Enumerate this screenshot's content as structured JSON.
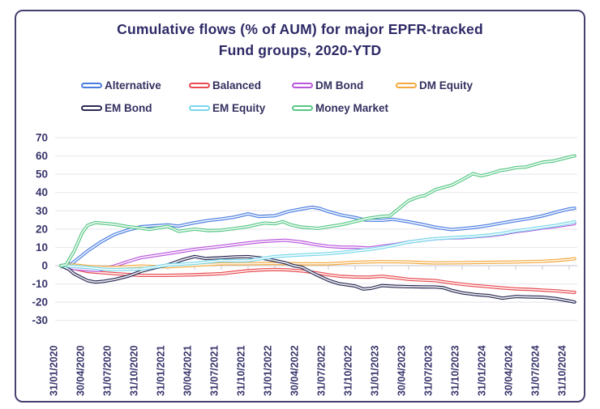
{
  "title": {
    "line1": "Cumulative flows (% of AUM) for major EPFR-tracked",
    "line2": "Fund groups, 2020-YTD"
  },
  "style": {
    "frame_color": "#45416f",
    "grid_color": "#eaeaf0",
    "axis_color": "#cfcfda",
    "tick_color": "#c6c6d0",
    "text_color": "#38356b",
    "title_color": "#2d2a66",
    "background": "#ffffff"
  },
  "chart_data": {
    "type": "line",
    "title": "Cumulative flows (% of AUM) for major EPFR-tracked Fund groups, 2020-YTD",
    "legend_position": "top",
    "grid": true,
    "x_axis": {
      "note": "series points use fractional tick index as x",
      "labels": [
        "31/01/2020",
        "30/04/2020",
        "31/07/2020",
        "31/10/2020",
        "31/01/2021",
        "30/04/2021",
        "31/07/2021",
        "31/10/2021",
        "31/01/2022",
        "30/04/2022",
        "31/07/2022",
        "31/10/2022",
        "31/01/2023",
        "30/04/2023",
        "31/07/2023",
        "31/10/2023",
        "31/01/2024",
        "30/04/2024",
        "31/07/2024",
        "31/10/2024"
      ]
    },
    "y_axis": {
      "min": -30,
      "max": 70,
      "ticks": [
        70,
        60,
        50,
        40,
        30,
        20,
        10,
        0,
        -10,
        -20,
        -30
      ]
    },
    "series": [
      {
        "name": "Alternative",
        "color": "#4a7de0",
        "points": [
          [
            0,
            0
          ],
          [
            0.4,
            1
          ],
          [
            1,
            8
          ],
          [
            1.5,
            13
          ],
          [
            2,
            17
          ],
          [
            2.5,
            19.5
          ],
          [
            3,
            21.3
          ],
          [
            3.5,
            21.8
          ],
          [
            4,
            22.3
          ],
          [
            4.4,
            21.6
          ],
          [
            5,
            23.5
          ],
          [
            5.5,
            24.7
          ],
          [
            6,
            25.5
          ],
          [
            6.5,
            26.6
          ],
          [
            7,
            28.3
          ],
          [
            7.4,
            26.9
          ],
          [
            8,
            27.3
          ],
          [
            8.5,
            29.6
          ],
          [
            9,
            31
          ],
          [
            9.4,
            32
          ],
          [
            9.7,
            31.2
          ],
          [
            10,
            29.6
          ],
          [
            10.5,
            27.6
          ],
          [
            11,
            26.3
          ],
          [
            11.4,
            24.9
          ],
          [
            12,
            24.8
          ],
          [
            12.4,
            25.4
          ],
          [
            13,
            24
          ],
          [
            13.5,
            22.6
          ],
          [
            14,
            21
          ],
          [
            14.6,
            19.7
          ],
          [
            15,
            20.2
          ],
          [
            15.5,
            21
          ],
          [
            16,
            22
          ],
          [
            16.5,
            23.4
          ],
          [
            17,
            24.6
          ],
          [
            17.5,
            25.8
          ],
          [
            18,
            27.2
          ],
          [
            18.6,
            29.6
          ],
          [
            19,
            31
          ],
          [
            19.2,
            31.4
          ]
        ]
      },
      {
        "name": "Balanced",
        "color": "#e84b50",
        "points": [
          [
            0,
            0
          ],
          [
            0.5,
            -1.6
          ],
          [
            1,
            -3.2
          ],
          [
            2,
            -4.4
          ],
          [
            3,
            -5.3
          ],
          [
            4,
            -5.3
          ],
          [
            5,
            -5
          ],
          [
            6,
            -4.4
          ],
          [
            7,
            -2.8
          ],
          [
            7.5,
            -2.3
          ],
          [
            8,
            -2.1
          ],
          [
            8.5,
            -2.3
          ],
          [
            9,
            -2.9
          ],
          [
            9.5,
            -3.8
          ],
          [
            10,
            -5
          ],
          [
            10.5,
            -5.9
          ],
          [
            11,
            -6.2
          ],
          [
            11.5,
            -6.3
          ],
          [
            12,
            -5.8
          ],
          [
            12.5,
            -6.6
          ],
          [
            13,
            -7.5
          ],
          [
            13.5,
            -7.9
          ],
          [
            14,
            -8.2
          ],
          [
            14.5,
            -9.2
          ],
          [
            15,
            -10.2
          ],
          [
            15.5,
            -10.9
          ],
          [
            16,
            -11.5
          ],
          [
            16.5,
            -12.2
          ],
          [
            17,
            -12.7
          ],
          [
            17.5,
            -13
          ],
          [
            18,
            -13.4
          ],
          [
            18.5,
            -13.8
          ],
          [
            19,
            -14.4
          ],
          [
            19.2,
            -14.6
          ]
        ]
      },
      {
        "name": "DM Bond",
        "color": "#b957dc",
        "points": [
          [
            0,
            0
          ],
          [
            0.5,
            -1.6
          ],
          [
            1,
            -2.3
          ],
          [
            1.4,
            -2.6
          ],
          [
            2,
            -0.2
          ],
          [
            2.5,
            2.2
          ],
          [
            3,
            4.4
          ],
          [
            4,
            6.6
          ],
          [
            5,
            8.9
          ],
          [
            6,
            10.6
          ],
          [
            7,
            12.4
          ],
          [
            7.5,
            13.2
          ],
          [
            8,
            13.6
          ],
          [
            8.4,
            13.9
          ],
          [
            9,
            12.9
          ],
          [
            9.5,
            11.6
          ],
          [
            10,
            10.6
          ],
          [
            10.5,
            10.1
          ],
          [
            11,
            10.1
          ],
          [
            11.5,
            9.6
          ],
          [
            12,
            10.6
          ],
          [
            12.5,
            11.6
          ],
          [
            13,
            12.9
          ],
          [
            13.5,
            13.9
          ],
          [
            14,
            14.7
          ],
          [
            14.5,
            15.1
          ],
          [
            15,
            15.3
          ],
          [
            15.5,
            15.8
          ],
          [
            16,
            16.4
          ],
          [
            16.5,
            17.3
          ],
          [
            17,
            18.6
          ],
          [
            17.5,
            19.5
          ],
          [
            18,
            20.6
          ],
          [
            18.5,
            21.5
          ],
          [
            19,
            22.5
          ],
          [
            19.2,
            23
          ]
        ]
      },
      {
        "name": "DM Equity",
        "color": "#f3a83d",
        "points": [
          [
            0,
            0
          ],
          [
            0.5,
            0.3
          ],
          [
            1,
            -0.4
          ],
          [
            1.5,
            -0.9
          ],
          [
            2,
            -1
          ],
          [
            2.5,
            -0.6
          ],
          [
            3,
            -0.2
          ],
          [
            3.5,
            -0.5
          ],
          [
            4,
            -0.6
          ],
          [
            4.5,
            -0.2
          ],
          [
            5,
            0.2
          ],
          [
            5.5,
            0.6
          ],
          [
            6,
            1
          ],
          [
            7,
            1.1
          ],
          [
            8,
            1.2
          ],
          [
            9,
            1
          ],
          [
            10,
            1
          ],
          [
            11,
            1.8
          ],
          [
            12,
            2.2
          ],
          [
            13,
            2
          ],
          [
            13.5,
            1.7
          ],
          [
            14,
            1.5
          ],
          [
            15,
            1.6
          ],
          [
            16,
            1.8
          ],
          [
            17,
            2
          ],
          [
            18,
            2.4
          ],
          [
            18.5,
            2.8
          ],
          [
            19,
            3.4
          ],
          [
            19.2,
            3.8
          ]
        ]
      },
      {
        "name": "EM Bond",
        "color": "#2b2b56",
        "points": [
          [
            0,
            0
          ],
          [
            0.3,
            -2
          ],
          [
            0.5,
            -4.5
          ],
          [
            1,
            -8.2
          ],
          [
            1.3,
            -9
          ],
          [
            1.6,
            -8.6
          ],
          [
            2,
            -7.6
          ],
          [
            2.5,
            -5.8
          ],
          [
            3,
            -3.1
          ],
          [
            3.5,
            -1.2
          ],
          [
            4,
            0.4
          ],
          [
            4.5,
            3
          ],
          [
            5,
            5
          ],
          [
            5.4,
            3.9
          ],
          [
            6,
            4.3
          ],
          [
            6.5,
            4.8
          ],
          [
            7,
            4.9
          ],
          [
            7.5,
            4.1
          ],
          [
            8,
            2.8
          ],
          [
            8.4,
            1.5
          ],
          [
            8.7,
            0
          ],
          [
            9,
            -0.8
          ],
          [
            9.5,
            -4.6
          ],
          [
            10,
            -8
          ],
          [
            10.4,
            -9.9
          ],
          [
            11,
            -11.1
          ],
          [
            11.3,
            -12.8
          ],
          [
            11.6,
            -12.4
          ],
          [
            12,
            -10.9
          ],
          [
            12.5,
            -11.3
          ],
          [
            13,
            -11.5
          ],
          [
            13.5,
            -11.6
          ],
          [
            14,
            -11.7
          ],
          [
            14.3,
            -12.1
          ],
          [
            14.6,
            -13.5
          ],
          [
            15,
            -14.9
          ],
          [
            15.5,
            -15.8
          ],
          [
            16,
            -16.4
          ],
          [
            16.5,
            -17.8
          ],
          [
            17,
            -16.9
          ],
          [
            17.5,
            -17.1
          ],
          [
            18,
            -17.3
          ],
          [
            18.5,
            -18
          ],
          [
            19,
            -19.3
          ],
          [
            19.2,
            -19.9
          ]
        ]
      },
      {
        "name": "EM Equity",
        "color": "#78d8ea",
        "points": [
          [
            0,
            0
          ],
          [
            0.5,
            -0.4
          ],
          [
            1,
            -1
          ],
          [
            1.5,
            -1.8
          ],
          [
            2,
            -2.2
          ],
          [
            2.5,
            -2
          ],
          [
            3,
            -1.8
          ],
          [
            3.5,
            -0.8
          ],
          [
            4,
            0.4
          ],
          [
            4.5,
            0.8
          ],
          [
            5,
            1.3
          ],
          [
            5.5,
            2
          ],
          [
            6,
            2.8
          ],
          [
            6.5,
            2.6
          ],
          [
            7,
            2.7
          ],
          [
            7.6,
            4.1
          ],
          [
            8,
            5
          ],
          [
            8.5,
            5.4
          ],
          [
            9,
            5.9
          ],
          [
            9.5,
            6.2
          ],
          [
            10,
            6.6
          ],
          [
            10.5,
            7.2
          ],
          [
            11,
            8
          ],
          [
            11.5,
            8.8
          ],
          [
            12,
            9.9
          ],
          [
            12.6,
            11.6
          ],
          [
            13,
            12.9
          ],
          [
            13.5,
            13.9
          ],
          [
            14,
            14.8
          ],
          [
            14.5,
            15.2
          ],
          [
            15,
            15.6
          ],
          [
            15.5,
            16.1
          ],
          [
            16,
            16.7
          ],
          [
            16.5,
            17.7
          ],
          [
            17,
            19
          ],
          [
            17.5,
            19.9
          ],
          [
            18,
            21
          ],
          [
            18.5,
            22
          ],
          [
            19,
            23.3
          ],
          [
            19.2,
            24
          ]
        ]
      },
      {
        "name": "Money Market",
        "color": "#57c785",
        "points": [
          [
            0,
            0
          ],
          [
            0.2,
            0.5
          ],
          [
            0.5,
            8
          ],
          [
            0.8,
            18
          ],
          [
            1,
            22
          ],
          [
            1.3,
            23.6
          ],
          [
            2,
            22.6
          ],
          [
            2.5,
            21.4
          ],
          [
            3,
            20.5
          ],
          [
            3.3,
            19.8
          ],
          [
            4,
            21.5
          ],
          [
            4.4,
            18.8
          ],
          [
            5,
            20
          ],
          [
            5.5,
            19.2
          ],
          [
            6,
            19.4
          ],
          [
            6.5,
            20.3
          ],
          [
            7,
            21.4
          ],
          [
            7.6,
            23.3
          ],
          [
            8,
            22.9
          ],
          [
            8.3,
            24.1
          ],
          [
            8.6,
            22.3
          ],
          [
            9,
            21.1
          ],
          [
            9.6,
            20.4
          ],
          [
            10,
            21.3
          ],
          [
            10.5,
            22.4
          ],
          [
            11,
            24.2
          ],
          [
            11.5,
            25.9
          ],
          [
            12,
            27
          ],
          [
            12.3,
            27.2
          ],
          [
            12.7,
            32
          ],
          [
            13,
            35.6
          ],
          [
            13.4,
            37.8
          ],
          [
            13.6,
            38.3
          ],
          [
            14,
            41.6
          ],
          [
            14.3,
            42.8
          ],
          [
            14.6,
            44
          ],
          [
            15,
            47
          ],
          [
            15.4,
            50.3
          ],
          [
            15.7,
            49.2
          ],
          [
            16,
            50.1
          ],
          [
            16.4,
            52
          ],
          [
            16.7,
            52.6
          ],
          [
            17,
            53.6
          ],
          [
            17.4,
            54
          ],
          [
            18,
            56.6
          ],
          [
            18.4,
            57.2
          ],
          [
            19,
            59.4
          ],
          [
            19.2,
            60.1
          ]
        ]
      }
    ]
  }
}
